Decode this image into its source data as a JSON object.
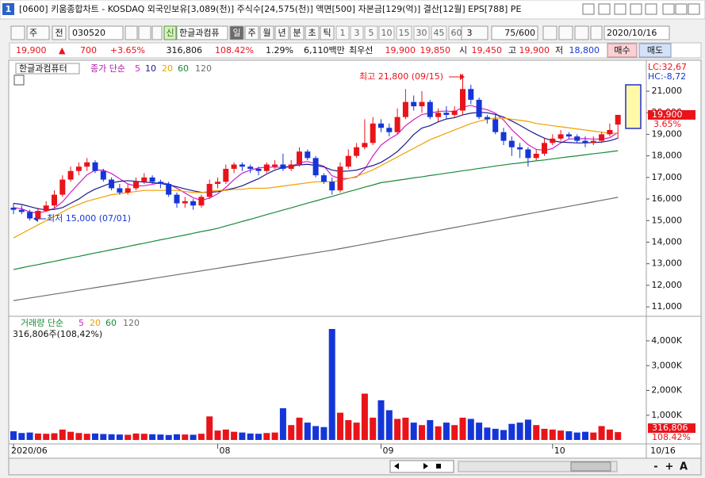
{
  "window": {
    "number": "1",
    "title": "[0600] 키움종합차트 - KOSDAQ 외국인보유[3,089(천)] 주식수[24,575(천)] 액면[500] 자본금[129(억)] 결산[12월] EPS[788] PE"
  },
  "toolbar": {
    "period": "주",
    "prev": "전",
    "code": "030520",
    "new": "신",
    "name": "한글과컴퓨",
    "tabs": [
      "일",
      "주",
      "월",
      "년",
      "분",
      "초",
      "틱"
    ],
    "nums": [
      "1",
      "3",
      "5",
      "10",
      "15",
      "30",
      "45",
      "60"
    ],
    "unit": "3",
    "count": "75/600",
    "date": "2020/10/16"
  },
  "info": {
    "price": "19,900",
    "arrow": "▲",
    "change": "700",
    "pct": "+3.65%",
    "volume": "316,806",
    "vol_pct": "108.42%",
    "turnover": "1.29%",
    "amount": "6,110백만",
    "best": "최우선",
    "bid": "19,900",
    "ask": "19,850",
    "open_label": "시",
    "open": "19,450",
    "high_label": "고",
    "high": "19,900",
    "low_label": "저",
    "low": "18,800",
    "buy": "매수",
    "sell": "매도"
  },
  "chart_data": [
    {
      "type": "candlestick",
      "legend_title": "한글과컴퓨터",
      "ma_label": "종가 단순",
      "lc": "LC:32,67",
      "hc": "HC:-8,72",
      "up_color": "#e8141a",
      "down_color": "#1436d8",
      "ohlc": [
        [
          15600,
          15800,
          15300,
          15500
        ],
        [
          15500,
          15700,
          15300,
          15400
        ],
        [
          15400,
          15500,
          15000,
          15100
        ],
        [
          15100,
          15600,
          15050,
          15450
        ],
        [
          15450,
          15900,
          15400,
          15700
        ],
        [
          15700,
          16400,
          15600,
          16200
        ],
        [
          16200,
          17100,
          16100,
          16900
        ],
        [
          16900,
          17500,
          16800,
          17300
        ],
        [
          17300,
          17700,
          17100,
          17500
        ],
        [
          17500,
          17900,
          17300,
          17700
        ],
        [
          17700,
          17800,
          17200,
          17300
        ],
        [
          17300,
          17400,
          16800,
          16900
        ],
        [
          16900,
          17000,
          16400,
          16500
        ],
        [
          16500,
          16700,
          16200,
          16300
        ],
        [
          16300,
          16700,
          16200,
          16500
        ],
        [
          16500,
          17000,
          16400,
          16800
        ],
        [
          16800,
          17200,
          16700,
          17000
        ],
        [
          17000,
          17100,
          16700,
          16800
        ],
        [
          16800,
          16900,
          16500,
          16700
        ],
        [
          16700,
          16800,
          16100,
          16200
        ],
        [
          16200,
          16300,
          15600,
          15800
        ],
        [
          15800,
          16100,
          15600,
          15900
        ],
        [
          15900,
          16000,
          15500,
          15700
        ],
        [
          15700,
          16200,
          15600,
          16100
        ],
        [
          16100,
          16900,
          16000,
          16700
        ],
        [
          16700,
          17000,
          16500,
          16800
        ],
        [
          16800,
          17600,
          16700,
          17400
        ],
        [
          17400,
          17700,
          17200,
          17600
        ],
        [
          17600,
          17700,
          17300,
          17500
        ],
        [
          17500,
          17600,
          17200,
          17400
        ],
        [
          17400,
          17500,
          17100,
          17300
        ],
        [
          17300,
          17700,
          17200,
          17600
        ],
        [
          17500,
          17800,
          17400,
          17600
        ],
        [
          17600,
          18100,
          17300,
          17400
        ],
        [
          17400,
          17800,
          17300,
          17600
        ],
        [
          17600,
          18400,
          17500,
          18200
        ],
        [
          18200,
          18300,
          17800,
          17900
        ],
        [
          17900,
          18000,
          17000,
          17100
        ],
        [
          17100,
          17200,
          16700,
          16800
        ],
        [
          16800,
          17000,
          16200,
          16400
        ],
        [
          16400,
          17700,
          16300,
          17500
        ],
        [
          17500,
          18300,
          17400,
          18000
        ],
        [
          18000,
          18600,
          17900,
          18400
        ],
        [
          18400,
          19700,
          18300,
          18600
        ],
        [
          18600,
          19800,
          18500,
          19500
        ],
        [
          19500,
          19700,
          19100,
          19300
        ],
        [
          19300,
          19500,
          18900,
          19100
        ],
        [
          19100,
          20200,
          19000,
          19800
        ],
        [
          19800,
          21100,
          19700,
          20500
        ],
        [
          20500,
          20800,
          20100,
          20300
        ],
        [
          20300,
          21000,
          20000,
          20500
        ],
        [
          20500,
          20600,
          19700,
          19800
        ],
        [
          19800,
          20200,
          19600,
          20000
        ],
        [
          20000,
          20300,
          19700,
          19900
        ],
        [
          19900,
          20300,
          19800,
          20100
        ],
        [
          20100,
          21800,
          19900,
          21100
        ],
        [
          21100,
          21300,
          20400,
          20600
        ],
        [
          20600,
          20700,
          19700,
          19800
        ],
        [
          19800,
          19900,
          19500,
          19700
        ],
        [
          19700,
          19900,
          19000,
          19100
        ],
        [
          19100,
          19300,
          18500,
          18700
        ],
        [
          18700,
          18900,
          18000,
          18400
        ],
        [
          18400,
          18600,
          17900,
          18300
        ],
        [
          18300,
          18400,
          17500,
          17900
        ],
        [
          17900,
          18300,
          17800,
          18100
        ],
        [
          18100,
          18800,
          18000,
          18600
        ],
        [
          18600,
          19000,
          18500,
          18800
        ],
        [
          18800,
          19200,
          18700,
          19000
        ],
        [
          19000,
          19100,
          18800,
          18900
        ],
        [
          18900,
          19000,
          18600,
          18700
        ],
        [
          18700,
          18900,
          18400,
          18600
        ],
        [
          18600,
          18900,
          18500,
          18700
        ],
        [
          18700,
          19100,
          18600,
          19000
        ],
        [
          19000,
          19500,
          18900,
          19200
        ],
        [
          19450,
          19900,
          18800,
          19900
        ]
      ],
      "series": [
        {
          "name": "5",
          "color": "#d21fc4",
          "values": [
            15600,
            15550,
            15400,
            15350,
            15430,
            15570,
            15870,
            16310,
            16720,
            17120,
            17340,
            17340,
            17180,
            16940,
            16700,
            16600,
            16620,
            16680,
            16760,
            16700,
            16500,
            16280,
            16060,
            15940,
            16040,
            16240,
            16540,
            16900,
            17200,
            17340,
            17440,
            17480,
            17480,
            17460,
            17500,
            17680,
            17740,
            17640,
            17520,
            17080,
            16940,
            16960,
            17020,
            17380,
            18000,
            18500,
            18780,
            19000,
            19400,
            19680,
            19920,
            19980,
            20060,
            20080,
            20040,
            20260,
            20340,
            20220,
            20140,
            19980,
            19660,
            19220,
            18860,
            18520,
            18300,
            18260,
            18340,
            18600,
            18780,
            18800,
            18800,
            18780,
            18780,
            18840,
            19080
          ]
        },
        {
          "name": "10",
          "color": "#1a1a90",
          "values": [
            15800,
            15750,
            15650,
            15550,
            15500,
            15520,
            15600,
            15800,
            16000,
            16260,
            16460,
            16600,
            16750,
            16820,
            16850,
            16820,
            16780,
            16760,
            16720,
            16650,
            16570,
            16470,
            16380,
            16310,
            16310,
            16340,
            16420,
            16500,
            16610,
            16780,
            16940,
            17160,
            17340,
            17460,
            17520,
            17580,
            17610,
            17560,
            17490,
            17340,
            17280,
            17300,
            17340,
            17450,
            17550,
            17700,
            17930,
            18200,
            18570,
            18990,
            19290,
            19400,
            19580,
            19710,
            19770,
            19900,
            19980,
            20020,
            20000,
            19920,
            19800,
            19620,
            19420,
            19200,
            19000,
            18820,
            18700,
            18640,
            18620,
            18600,
            18600,
            18620,
            18640,
            18700,
            18820
          ]
        },
        {
          "name": "20",
          "color": "#f0a000",
          "values": [
            14200,
            14400,
            14600,
            14800,
            15000,
            15200,
            15400,
            15600,
            15750,
            15900,
            16000,
            16100,
            16200,
            16250,
            16300,
            16350,
            16400,
            16400,
            16400,
            16400,
            16400,
            16350,
            16300,
            16300,
            16350,
            16400,
            16400,
            16450,
            16450,
            16500,
            16500,
            16500,
            16550,
            16600,
            16650,
            16700,
            16750,
            16800,
            16800,
            16800,
            16850,
            16950,
            17050,
            17200,
            17350,
            17550,
            17750,
            17950,
            18150,
            18350,
            18550,
            18750,
            18900,
            19050,
            19200,
            19350,
            19500,
            19600,
            19700,
            19750,
            19750,
            19700,
            19650,
            19600,
            19500,
            19450,
            19400,
            19350,
            19300,
            19250,
            19200,
            19150,
            19100,
            19050,
            19050
          ]
        },
        {
          "name": "60",
          "color": "#188a38",
          "values": [
            12730,
            12810,
            12890,
            12960,
            13040,
            13110,
            13190,
            13270,
            13340,
            13420,
            13500,
            13570,
            13650,
            13720,
            13800,
            13880,
            13950,
            14030,
            14110,
            14180,
            14260,
            14330,
            14410,
            14490,
            14560,
            14640,
            14750,
            14850,
            14960,
            15060,
            15170,
            15280,
            15380,
            15490,
            15590,
            15700,
            15810,
            15910,
            16020,
            16120,
            16230,
            16340,
            16440,
            16550,
            16650,
            16760,
            16810,
            16870,
            16920,
            16980,
            17030,
            17090,
            17140,
            17200,
            17250,
            17310,
            17360,
            17420,
            17470,
            17530,
            17580,
            17630,
            17670,
            17720,
            17770,
            17810,
            17860,
            17910,
            17960,
            18000,
            18050,
            18100,
            18140,
            18190,
            18240
          ]
        },
        {
          "name": "120",
          "color": "#6e6e6e",
          "values": [
            11290,
            11350,
            11410,
            11470,
            11530,
            11590,
            11650,
            11710,
            11770,
            11830,
            11890,
            11950,
            12010,
            12070,
            12130,
            12190,
            12250,
            12310,
            12370,
            12430,
            12490,
            12550,
            12610,
            12670,
            12730,
            12790,
            12850,
            12910,
            12970,
            13030,
            13090,
            13150,
            13210,
            13270,
            13330,
            13390,
            13450,
            13510,
            13570,
            13630,
            13700,
            13770,
            13840,
            13910,
            13980,
            14050,
            14120,
            14190,
            14260,
            14330,
            14400,
            14470,
            14540,
            14610,
            14680,
            14750,
            14820,
            14890,
            14960,
            15030,
            15100,
            15170,
            15240,
            15310,
            15380,
            15450,
            15520,
            15590,
            15660,
            15730,
            15800,
            15870,
            15940,
            16010,
            16080
          ]
        }
      ],
      "ylim": [
        10600,
        22360
      ],
      "yticks": [
        {
          "value": 11000,
          "label": "11,000"
        },
        {
          "value": 12000,
          "label": "12,000"
        },
        {
          "value": 13000,
          "label": "13,000"
        },
        {
          "value": 14000,
          "label": "14,000"
        },
        {
          "value": 15000,
          "label": "15,000"
        },
        {
          "value": 16000,
          "label": "16,000"
        },
        {
          "value": 17000,
          "label": "17,000"
        },
        {
          "value": 18000,
          "label": "18,000"
        },
        {
          "value": 19000,
          "label": "19,000"
        },
        {
          "value": 20000,
          "label": "20,000"
        },
        {
          "value": 21000,
          "label": "21,000"
        }
      ],
      "grid": false,
      "annotations": [
        "최고 21,800 (09/15)",
        "최저 15,000 (07/01)"
      ],
      "last": {
        "value": 19900,
        "label": "19,900",
        "change": "3.65%"
      }
    },
    {
      "type": "bar",
      "ma_label": "거래량 단순",
      "summary": "316,806주(108,42%)",
      "legend": [
        {
          "name": "5",
          "color": "#d21fc4"
        },
        {
          "name": "20",
          "color": "#f0a000"
        },
        {
          "name": "60",
          "color": "#188a38"
        },
        {
          "name": "120",
          "color": "#6e6e6e"
        }
      ],
      "categories": [
        "2020/06",
        null,
        null,
        null,
        null,
        null,
        null,
        null,
        null,
        null,
        null,
        null,
        null,
        null,
        null,
        null,
        null,
        null,
        null,
        null,
        null,
        null,
        null,
        null,
        null,
        "08",
        null,
        null,
        null,
        null,
        null,
        null,
        null,
        null,
        null,
        null,
        null,
        null,
        null,
        null,
        null,
        null,
        null,
        null,
        null,
        "09",
        null,
        null,
        null,
        null,
        null,
        null,
        null,
        null,
        null,
        null,
        null,
        null,
        null,
        null,
        null,
        null,
        null,
        null,
        null,
        null,
        "10",
        null,
        null,
        null,
        null,
        null,
        null,
        null,
        null
      ],
      "values": [
        350,
        280,
        300,
        260,
        250,
        270,
        420,
        330,
        280,
        250,
        260,
        240,
        230,
        220,
        210,
        260,
        250,
        230,
        220,
        200,
        230,
        220,
        210,
        250,
        950,
        380,
        420,
        330,
        300,
        260,
        250,
        280,
        300,
        1280,
        600,
        900,
        700,
        560,
        520,
        4480,
        1100,
        800,
        700,
        1870,
        900,
        1600,
        1200,
        850,
        900,
        700,
        600,
        800,
        550,
        700,
        600,
        900,
        850,
        700,
        500,
        450,
        400,
        650,
        700,
        820,
        600,
        450,
        420,
        380,
        350,
        300,
        330,
        300,
        560,
        420,
        316.806
      ],
      "ylim": [
        0,
        4800
      ],
      "yticks": [
        {
          "value": 1000,
          "label": "1,000K"
        },
        {
          "value": 2000,
          "label": "2,000K"
        },
        {
          "value": 3000,
          "label": "3,000K"
        },
        {
          "value": 4000,
          "label": "4,000K"
        }
      ],
      "last": {
        "value": 316.806,
        "label": "316,806",
        "change": "108.42%"
      },
      "cursor_date": "10/16"
    }
  ],
  "nav": [
    "-",
    "+",
    "A"
  ]
}
